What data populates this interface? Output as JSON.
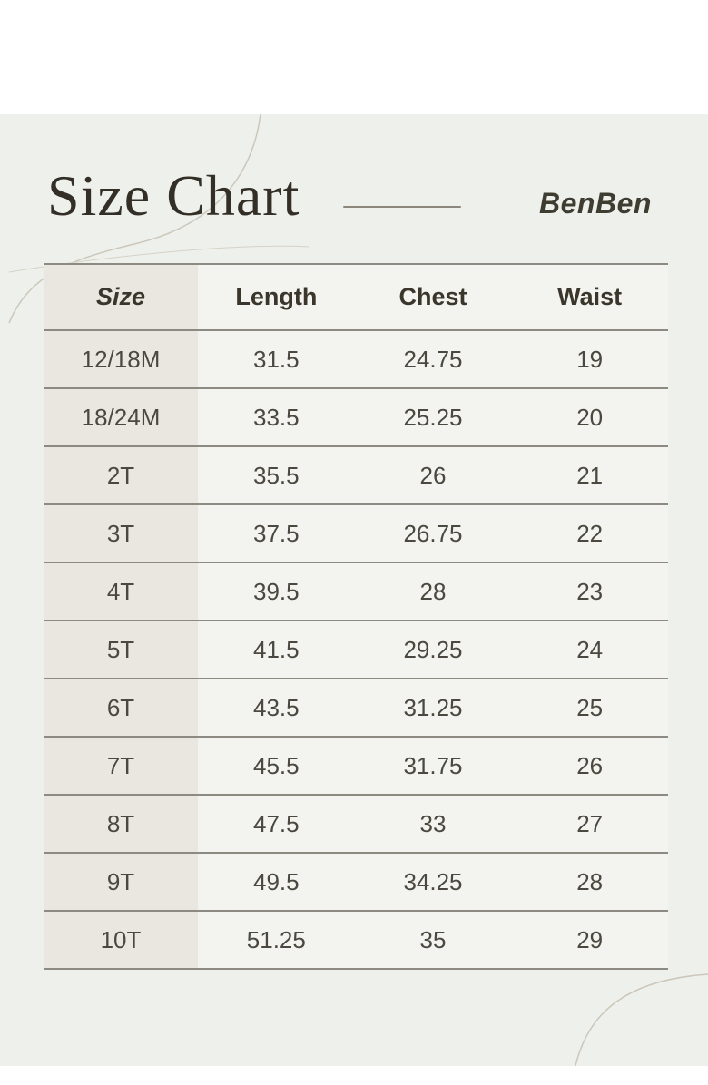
{
  "header": {
    "title": "Size Chart",
    "brand": "BenBen"
  },
  "chart_data": {
    "type": "table",
    "title": "Size Chart",
    "columns": [
      "Size",
      "Length",
      "Chest",
      "Waist"
    ],
    "rows": [
      [
        "12/18M",
        "31.5",
        "24.75",
        "19"
      ],
      [
        "18/24M",
        "33.5",
        "25.25",
        "20"
      ],
      [
        "2T",
        "35.5",
        "26",
        "21"
      ],
      [
        "3T",
        "37.5",
        "26.75",
        "22"
      ],
      [
        "4T",
        "39.5",
        "28",
        "23"
      ],
      [
        "5T",
        "41.5",
        "29.25",
        "24"
      ],
      [
        "6T",
        "43.5",
        "31.25",
        "25"
      ],
      [
        "7T",
        "45.5",
        "31.75",
        "26"
      ],
      [
        "8T",
        "47.5",
        "33",
        "27"
      ],
      [
        "9T",
        "49.5",
        "34.25",
        "28"
      ],
      [
        "10T",
        "51.25",
        "35",
        "29"
      ]
    ],
    "layout": {
      "header_column_highlighted": "Size",
      "grid": "horizontal-rules-only"
    }
  },
  "colors": {
    "outer_background": "#ffffff",
    "panel_background": "#eef0ec",
    "size_column_background": "#e9e7df",
    "cell_background": "#f3f4f0",
    "rule_line": "#8c8a81",
    "title_text": "#332f27",
    "table_text": "#4b4840",
    "decorative_curve": "#ccc7ba"
  }
}
